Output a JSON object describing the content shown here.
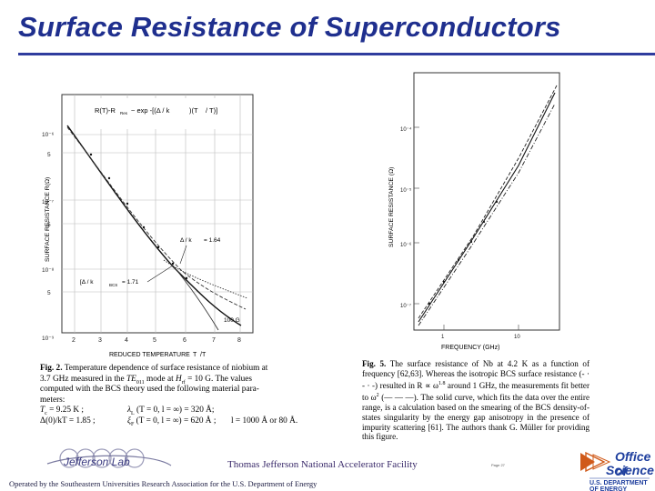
{
  "title": "Surface Resistance of Superconductors",
  "figure1": {
    "formula_left": "R(T)-R",
    "formula_left_sub": "Res",
    "formula_right": "~ exp -[(Δ / k",
    "formula_right2": ")(T",
    "formula_right3": "/ T)]",
    "ylabel": "SURFACE RESISTANCE R(Ω)",
    "xlabel": "REDUCED TEMPERATURE",
    "xlabel_tc": "T",
    "xlabel_tail": "/T",
    "yticks": [
      "10⁻⁶",
      "5",
      "10⁻⁷",
      "5",
      "10⁻⁸",
      "5",
      "10⁻⁹"
    ],
    "xticks": [
      "2",
      "3",
      "4",
      "5",
      "6",
      "7",
      "8"
    ],
    "annotation_upper": "Δ / k",
    "annotation_upper_val": "= 1.64",
    "annotation_lower": "[Δ / k",
    "annotation_lower_val": "= 1.71",
    "annotation_lower_sub": "BCS",
    "annotation_100g": "100 G"
  },
  "figure2": {
    "ylabel": "SURFACE RESISTANCE (Ω)",
    "xlabel": "FREQUENCY (GHz)",
    "yticks": [
      "10⁻⁴",
      "10⁻⁵",
      "10⁻⁶",
      "10⁻⁷"
    ],
    "xticks": [
      "1",
      "10"
    ]
  },
  "caption1": {
    "label": "Fig. 2.",
    "line1": "Temperature dependence of surface resistance of niobium at",
    "line2a": "3.7 GHz measured in the",
    "line2b": "TE",
    "line2c": "mode at",
    "line2d": "H",
    "line2e": "= 10 G. The values",
    "line3": "computed with the BCS theory used the following material para-",
    "line4": "meters:",
    "p1": "T",
    "p1b": "= 9.25 K ;",
    "p2": "λ",
    "p2b": "(T = 0, l = ∞) = 320 Å;",
    "p3": "Δ(0)/kT = 1.85 ;",
    "p4": "ξ",
    "p4b": "(T = 0, l = ∞) = 620 Å ;",
    "p5": "l = 1000 Å or 80 Å."
  },
  "caption2": {
    "label": "Fig. 5.",
    "text": "The surface resistance of Nb at 4.2 K as a function of frequency [62,63]. Whereas the isotropic BCS surface resistance (- · - · -) resulted in R ∝ ω",
    "exp1": "1.8",
    "text2": " around 1 GHz, the measurements fit better to ω",
    "exp2": "2",
    "text3": " (— — —). The solid curve, which fits the data over the entire range, is a calculation based on the smearing of the BCS density-of-states singularity by the energy gap anisotropy in the presence of impurity scattering [61]. The authors thank G. Müller for providing this figure."
  },
  "footer": {
    "center": "Thomas Jefferson National Accelerator Facility",
    "left": "Operated by the Southeastern Universities Research Association for the U.S. Department of Energy",
    "page": "Page 27",
    "jlab_logo": "Jefferson Lab",
    "office_line1": "Office of",
    "office_line2": "Science",
    "office_line3": "U.S. DEPARTMENT OF ENERGY"
  },
  "colors": {
    "title": "#1f2f8e",
    "rule": "#2f3c9e",
    "office": "#1f3f9e",
    "office_accent": "#d05a1a"
  }
}
